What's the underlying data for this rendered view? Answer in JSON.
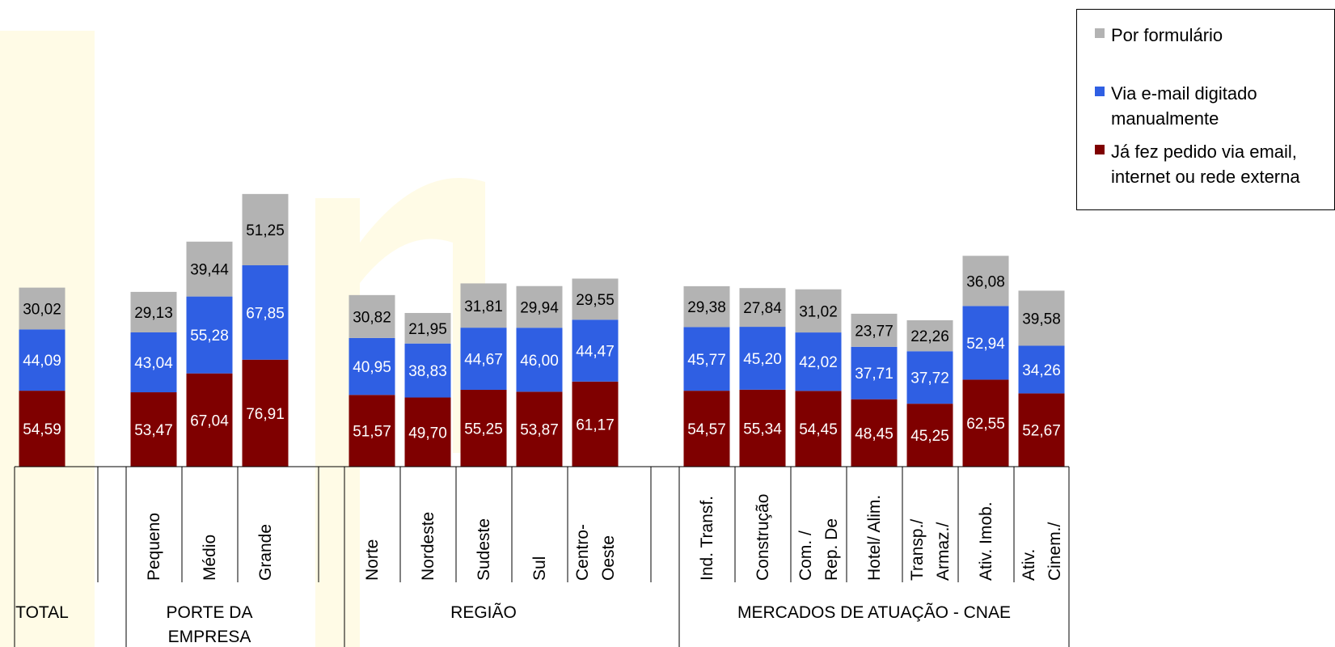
{
  "chart_data": {
    "type": "bar",
    "stacked": true,
    "legend_position": "top-right",
    "colors": {
      "form": "#b3b3b3",
      "email": "#2f5fe3",
      "order": "#7f0000",
      "watermark": "#fffbe6"
    },
    "series": [
      {
        "name": "Já fez pedido via email, internet ou rede externa",
        "key": "order",
        "values": [
          54.59,
          53.47,
          67.04,
          76.91,
          51.57,
          49.7,
          55.25,
          53.87,
          61.17,
          54.57,
          55.34,
          54.45,
          48.45,
          45.25,
          62.55,
          52.67
        ],
        "labels": [
          "54,59",
          "53,47",
          "67,04",
          "76,91",
          "51,57",
          "49,70",
          "55,25",
          "53,87",
          "61,17",
          "54,57",
          "55,34",
          "54,45",
          "48,45",
          "45,25",
          "62,55",
          "52,67"
        ]
      },
      {
        "name": "Via e-mail digitado manualmente",
        "key": "email",
        "values": [
          44.09,
          43.04,
          55.28,
          67.85,
          40.95,
          38.83,
          44.67,
          46.0,
          44.47,
          45.77,
          45.2,
          42.02,
          37.71,
          37.72,
          52.94,
          34.26
        ],
        "labels": [
          "44,09",
          "43,04",
          "55,28",
          "67,85",
          "40,95",
          "38,83",
          "44,67",
          "46,00",
          "44,47",
          "45,77",
          "45,20",
          "42,02",
          "37,71",
          "37,72",
          "52,94",
          "34,26"
        ]
      },
      {
        "name": "Por formulário",
        "key": "form",
        "values": [
          30.02,
          29.13,
          39.44,
          51.25,
          30.82,
          21.95,
          31.81,
          29.94,
          29.55,
          29.38,
          27.84,
          31.02,
          23.77,
          22.26,
          36.08,
          39.58
        ],
        "labels": [
          "30,02",
          "29,13",
          "39,44",
          "51,25",
          "30,82",
          "21,95",
          "31,81",
          "29,94",
          "29,55",
          "29,38",
          "27,84",
          "31,02",
          "23,77",
          "22,26",
          "36,08",
          "39,58"
        ]
      }
    ],
    "categories": [
      "",
      "Pequeno",
      "Médio",
      "Grande",
      "Norte",
      "Nordeste",
      "Sudeste",
      "Sul",
      "Centro-\nOeste",
      "Ind. Transf.",
      "Construção",
      "Com. /\nRep. De",
      "Hotel/ Alim.",
      "Transp./\nArmaz./",
      "Ativ. Imob.",
      "Ativ.\nCinem./"
    ],
    "groups": [
      {
        "label": "TOTAL",
        "count": 1
      },
      {
        "label": "PORTE DA\nEMPRESA",
        "count": 3
      },
      {
        "label": "REGIÃO",
        "count": 5
      },
      {
        "label": "MERCADOS DE ATUAÇÃO - CNAE",
        "count": 7
      }
    ],
    "legend": [
      {
        "label": "Por formulário",
        "key": "form"
      },
      {
        "label": "Via e-mail digitado\nmanualmente",
        "key": "email"
      },
      {
        "label": "Já fez pedido via email,\ninternet ou rede externa",
        "key": "order"
      }
    ],
    "grid": false
  }
}
